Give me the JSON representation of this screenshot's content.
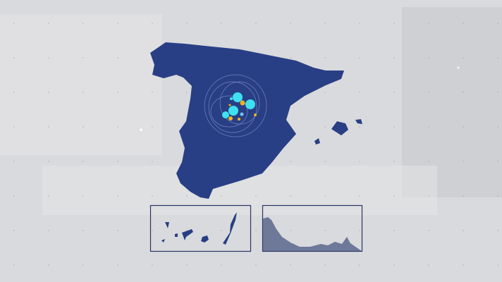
{
  "colors": {
    "background": "#d9dadd",
    "map_fill": "#283f85",
    "inset_border": "#2a3566",
    "bubble_primary": "#3fe0f0",
    "bubble_secondary": "#f0b020",
    "inset_ceuta_fill": "#6e7899"
  },
  "map": {
    "main_region": "spain-peninsula",
    "insets": [
      "canary-islands",
      "ceuta-melilla-coast"
    ]
  }
}
